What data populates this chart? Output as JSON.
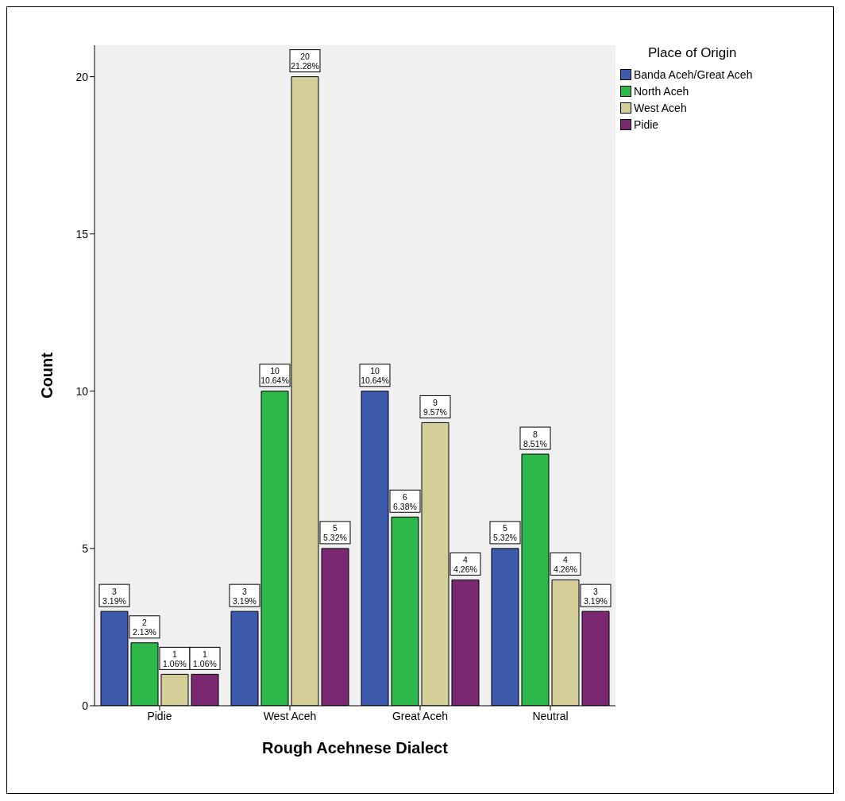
{
  "chart_data": {
    "type": "bar",
    "xlabel": "Rough Acehnese Dialect",
    "ylabel": "Count",
    "legend_title": "Place of Origin",
    "legend": "top right",
    "grid": false,
    "categories": [
      "Pidie",
      "West Aceh",
      "Great Aceh",
      "Neutral"
    ],
    "ylim": [
      0,
      21
    ],
    "yticks": [
      0,
      5,
      10,
      15,
      20
    ],
    "series": [
      {
        "name": "Banda Aceh/Great Aceh",
        "color": "#3d5aad",
        "values": [
          3,
          3,
          10,
          5
        ],
        "value_labels": [
          "3\n3.19%",
          "3\n3.19%",
          "10\n10.64%",
          "5\n5.32%"
        ]
      },
      {
        "name": "North Aceh",
        "color": "#2db84a",
        "values": [
          2,
          10,
          6,
          8
        ],
        "value_labels": [
          "2\n2.13%",
          "10\n10.64%",
          "6\n6.38%",
          "8\n8.51%"
        ]
      },
      {
        "name": "West Aceh",
        "color": "#d4cf98",
        "values": [
          1,
          20,
          9,
          4
        ],
        "value_labels": [
          "1\n1.06%",
          "20\n21.28%",
          "9\n9.57%",
          "4\n4.26%"
        ]
      },
      {
        "name": "Pidie",
        "color": "#7b2872",
        "values": [
          1,
          5,
          4,
          3
        ],
        "value_labels": [
          "1\n1.06%",
          "5\n5.32%",
          "4\n4.26%",
          "3\n3.19%"
        ]
      }
    ]
  }
}
